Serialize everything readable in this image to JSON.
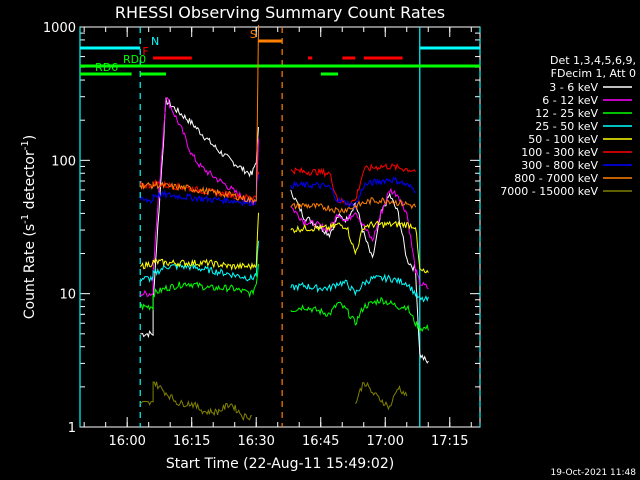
{
  "chart_data": {
    "type": "line",
    "title": "RHESSI Observing Summary Count Rates",
    "xlabel": "Start Time (22-Aug-11 15:49:02)",
    "ylabel_main": "Count Rate (s",
    "ylabel_sup1": "-1",
    "ylabel_mid": " detector",
    "ylabel_sup2": "-1",
    "ylabel_end": ")",
    "yscale": "log",
    "ylim": [
      1,
      1000
    ],
    "xlim_minutes": [
      0,
      93
    ],
    "x_ticks": [
      {
        "m": 10.97,
        "label": "16:00"
      },
      {
        "m": 25.97,
        "label": "16:15"
      },
      {
        "m": 40.97,
        "label": "16:30"
      },
      {
        "m": 55.97,
        "label": "16:45"
      },
      {
        "m": 70.97,
        "label": "17:00"
      },
      {
        "m": 85.97,
        "label": "17:15"
      }
    ],
    "y_ticks": [
      {
        "v": 1,
        "label": "1"
      },
      {
        "v": 10,
        "label": "10"
      },
      {
        "v": 100,
        "label": "100"
      },
      {
        "v": 1000,
        "label": "1000"
      }
    ],
    "legend_header": [
      "Det 1,3,4,5,6,9,",
      "FDecim 1, Att 0"
    ],
    "legend_placement": "right",
    "series": [
      {
        "name": "3 - 6 keV",
        "color": "#ffffff",
        "points": [
          [
            14,
            5
          ],
          [
            17,
            5
          ],
          [
            17,
            9
          ],
          [
            20,
            280
          ],
          [
            23,
            230
          ],
          [
            26,
            190
          ],
          [
            29,
            150
          ],
          [
            32,
            120
          ],
          [
            35,
            100
          ],
          [
            38,
            85
          ],
          [
            40,
            78
          ],
          [
            41,
            100
          ],
          [
            41.5,
            170
          ],
          [
            47,
            null
          ],
          [
            49,
            60
          ],
          [
            52,
            38
          ],
          [
            55,
            33
          ],
          [
            58,
            28
          ],
          [
            60,
            38
          ],
          [
            62,
            36
          ],
          [
            64,
            48
          ],
          [
            66,
            28
          ],
          [
            68,
            18
          ],
          [
            70,
            40
          ],
          [
            72,
            55
          ],
          [
            74,
            40
          ],
          [
            76,
            18
          ],
          [
            78,
            15
          ],
          [
            79,
            3.5
          ],
          [
            81,
            3
          ]
        ]
      },
      {
        "name": "6 - 12 keV",
        "color": "#ff00ff",
        "points": [
          [
            14,
            10
          ],
          [
            17,
            10
          ],
          [
            17,
            15
          ],
          [
            20,
            300
          ],
          [
            22,
            220
          ],
          [
            24,
            160
          ],
          [
            26,
            110
          ],
          [
            28,
            90
          ],
          [
            30,
            80
          ],
          [
            32,
            72
          ],
          [
            34,
            65
          ],
          [
            36,
            58
          ],
          [
            38,
            52
          ],
          [
            40,
            48
          ],
          [
            41,
            52
          ],
          [
            41.5,
            150
          ],
          [
            47,
            null
          ],
          [
            49,
            45
          ],
          [
            52,
            35
          ],
          [
            55,
            33
          ],
          [
            58,
            30
          ],
          [
            60,
            40
          ],
          [
            62,
            35
          ],
          [
            64,
            42
          ],
          [
            66,
            32
          ],
          [
            68,
            25
          ],
          [
            70,
            40
          ],
          [
            72,
            60
          ],
          [
            74,
            55
          ],
          [
            76,
            40
          ],
          [
            78,
            15
          ],
          [
            79,
            12
          ],
          [
            81,
            11
          ]
        ]
      },
      {
        "name": "12 - 25 keV",
        "color": "#00ff00",
        "points": [
          [
            14,
            8
          ],
          [
            17,
            8
          ],
          [
            17,
            10
          ],
          [
            20,
            11
          ],
          [
            25,
            12
          ],
          [
            30,
            11
          ],
          [
            35,
            11
          ],
          [
            40,
            10
          ],
          [
            41,
            12
          ],
          [
            41.5,
            17
          ],
          [
            47,
            null
          ],
          [
            49,
            7.5
          ],
          [
            52,
            8
          ],
          [
            55,
            7.5
          ],
          [
            58,
            7
          ],
          [
            60,
            8.5
          ],
          [
            62,
            7.5
          ],
          [
            64,
            6
          ],
          [
            66,
            8
          ],
          [
            68,
            8.5
          ],
          [
            70,
            9
          ],
          [
            72,
            8.5
          ],
          [
            74,
            8
          ],
          [
            76,
            8
          ],
          [
            78,
            6
          ],
          [
            79,
            5.5
          ],
          [
            81,
            5.5
          ]
        ]
      },
      {
        "name": "25 - 50 keV",
        "color": "#00ffff",
        "points": [
          [
            14,
            13
          ],
          [
            17,
            13
          ],
          [
            17,
            14
          ],
          [
            20,
            16
          ],
          [
            25,
            16
          ],
          [
            30,
            15
          ],
          [
            35,
            14
          ],
          [
            40,
            13
          ],
          [
            41,
            14
          ],
          [
            41.5,
            25
          ],
          [
            47,
            null
          ],
          [
            49,
            11
          ],
          [
            52,
            11.5
          ],
          [
            55,
            11
          ],
          [
            58,
            11
          ],
          [
            60,
            12
          ],
          [
            62,
            12
          ],
          [
            64,
            10
          ],
          [
            66,
            12
          ],
          [
            68,
            13
          ],
          [
            70,
            13
          ],
          [
            72,
            13
          ],
          [
            74,
            12.5
          ],
          [
            76,
            12
          ],
          [
            78,
            10
          ],
          [
            79,
            9
          ],
          [
            81,
            9
          ]
        ]
      },
      {
        "name": "50 - 100 keV",
        "color": "#ffff00",
        "points": [
          [
            14,
            16
          ],
          [
            17,
            17
          ],
          [
            17,
            17.5
          ],
          [
            20,
            17
          ],
          [
            25,
            17
          ],
          [
            30,
            17
          ],
          [
            35,
            16
          ],
          [
            40,
            16
          ],
          [
            41,
            17
          ],
          [
            41.5,
            40
          ],
          [
            47,
            null
          ],
          [
            49,
            30
          ],
          [
            52,
            31
          ],
          [
            55,
            31
          ],
          [
            58,
            31
          ],
          [
            60,
            33
          ],
          [
            62,
            32
          ],
          [
            64,
            20
          ],
          [
            66,
            32
          ],
          [
            68,
            33
          ],
          [
            70,
            33
          ],
          [
            72,
            33
          ],
          [
            74,
            33
          ],
          [
            76,
            33
          ],
          [
            78,
            32
          ],
          [
            79,
            15
          ],
          [
            81,
            14
          ]
        ]
      },
      {
        "name": "100 - 300 keV",
        "color": "#ff0000",
        "points": [
          [
            14,
            65
          ],
          [
            17,
            65
          ],
          [
            17,
            68
          ],
          [
            20,
            65
          ],
          [
            25,
            62
          ],
          [
            30,
            58
          ],
          [
            35,
            55
          ],
          [
            40,
            52
          ],
          [
            41,
            56
          ],
          [
            41.5,
            80
          ],
          [
            47,
            null
          ],
          [
            49,
            85
          ],
          [
            52,
            82
          ],
          [
            55,
            82
          ],
          [
            58,
            80
          ],
          [
            60,
            50
          ],
          [
            62,
            48
          ],
          [
            64,
            50
          ],
          [
            66,
            85
          ],
          [
            68,
            88
          ],
          [
            70,
            90
          ],
          [
            72,
            90
          ],
          [
            74,
            88
          ],
          [
            76,
            86
          ],
          [
            78,
            84
          ],
          [
            79,
            null
          ]
        ]
      },
      {
        "name": "300 - 800 keV",
        "color": "#0000ff",
        "points": [
          [
            14,
            50
          ],
          [
            17,
            50
          ],
          [
            17,
            55
          ],
          [
            20,
            55
          ],
          [
            25,
            53
          ],
          [
            30,
            51
          ],
          [
            35,
            50
          ],
          [
            40,
            48
          ],
          [
            41,
            50
          ],
          [
            41.5,
            80
          ],
          [
            47,
            null
          ],
          [
            49,
            65
          ],
          [
            52,
            65
          ],
          [
            55,
            65
          ],
          [
            58,
            63
          ],
          [
            60,
            50
          ],
          [
            62,
            48
          ],
          [
            64,
            45
          ],
          [
            66,
            65
          ],
          [
            68,
            68
          ],
          [
            70,
            70
          ],
          [
            72,
            72
          ],
          [
            74,
            70
          ],
          [
            76,
            65
          ],
          [
            78,
            60
          ],
          [
            79,
            null
          ]
        ]
      },
      {
        "name": "800 - 7000 keV",
        "color": "#ff8000",
        "points": [
          [
            14,
            65
          ],
          [
            17,
            65
          ],
          [
            17,
            66
          ],
          [
            20,
            64
          ],
          [
            25,
            62
          ],
          [
            30,
            58
          ],
          [
            35,
            55
          ],
          [
            40,
            50
          ],
          [
            41,
            52
          ],
          [
            41.5,
            1000
          ],
          [
            47,
            null
          ],
          [
            49,
            45
          ],
          [
            52,
            46
          ],
          [
            55,
            45
          ],
          [
            58,
            44
          ],
          [
            60,
            42
          ],
          [
            62,
            43
          ],
          [
            64,
            45
          ],
          [
            66,
            48
          ],
          [
            68,
            50
          ],
          [
            70,
            50
          ],
          [
            72,
            50
          ],
          [
            74,
            48
          ],
          [
            76,
            47
          ],
          [
            78,
            45
          ],
          [
            79,
            null
          ]
        ]
      },
      {
        "name": "7000 - 15000 keV",
        "color": "#808000",
        "points": [
          [
            14,
            1.5
          ],
          [
            17,
            1.5
          ],
          [
            17,
            2.2
          ],
          [
            20,
            1.8
          ],
          [
            23,
            1.5
          ],
          [
            26,
            1.5
          ],
          [
            29,
            1.3
          ],
          [
            32,
            1.3
          ],
          [
            35,
            1.5
          ],
          [
            38,
            1.2
          ],
          [
            40,
            1.2
          ],
          [
            41,
            null
          ],
          [
            64,
            1.5
          ],
          [
            66,
            2.2
          ],
          [
            68,
            1.8
          ],
          [
            70,
            1.6
          ],
          [
            72,
            1.4
          ],
          [
            74,
            2.0
          ],
          [
            76,
            1.7
          ],
          [
            78,
            null
          ]
        ]
      }
    ],
    "flags": [
      {
        "label": "N",
        "color": "#00ffff",
        "segments": [
          [
            0,
            14
          ],
          [
            79,
            93
          ]
        ],
        "level": 0
      },
      {
        "label": "S",
        "color": "#ff8000",
        "segments": [
          [
            41.5,
            47
          ]
        ],
        "level": 1
      },
      {
        "label": "F",
        "color": "#ff0000",
        "segments": [
          [
            17,
            26
          ],
          [
            53,
            54
          ],
          [
            61,
            64
          ],
          [
            66,
            75
          ]
        ],
        "level": 2
      },
      {
        "label": "RD0",
        "color": "#00ff00",
        "segments": [
          [
            0,
            93
          ]
        ],
        "level": 3
      },
      {
        "label": "RD6",
        "color": "#00ff00",
        "segments": [
          [
            0,
            12
          ],
          [
            14,
            20
          ],
          [
            56,
            60
          ]
        ],
        "level": 4
      }
    ],
    "vlines": [
      {
        "m": 0,
        "color": "#00ffff",
        "dashed": false
      },
      {
        "m": 14,
        "color": "#00ffff",
        "dashed": true
      },
      {
        "m": 47,
        "color": "#ff8000",
        "dashed": true
      },
      {
        "m": 79,
        "color": "#00ffff",
        "dashed": false
      },
      {
        "m": 93,
        "color": "#00ffff",
        "dashed": true
      }
    ],
    "footer_timestamp": "19-Oct-2021 11:48",
    "grid": false
  }
}
